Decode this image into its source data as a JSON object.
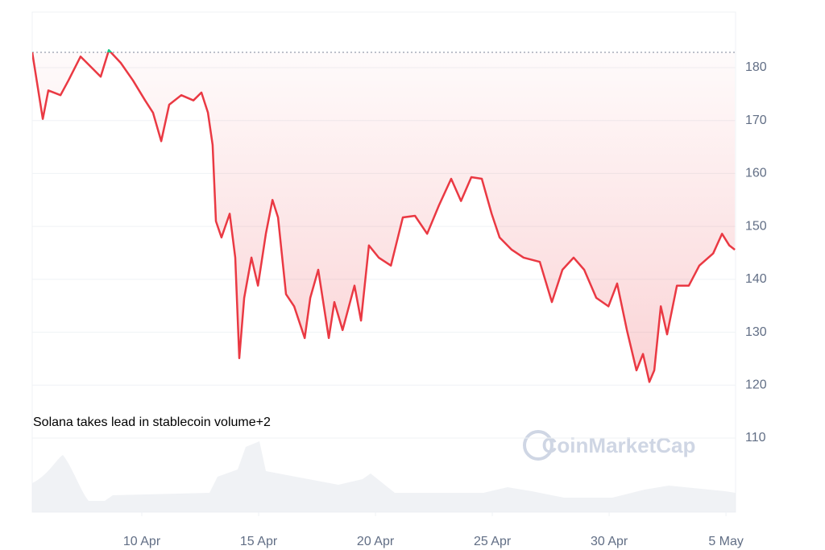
{
  "chart_data": {
    "type": "line",
    "annotation": "Solana takes lead in stablecoin volume+2",
    "watermark": "CoinMarketCap",
    "color": "#ea3943",
    "color_above": "#16c784",
    "baseline": 182.9,
    "x": [
      5.31,
      5.76,
      6.0,
      6.52,
      6.86,
      7.38,
      7.72,
      8.24,
      8.59,
      9.1,
      9.62,
      10.14,
      10.48,
      10.83,
      11.17,
      11.69,
      12.21,
      12.55,
      12.83,
      13.03,
      13.17,
      13.41,
      13.76,
      14.0,
      14.17,
      14.38,
      14.69,
      14.97,
      15.31,
      15.59,
      15.83,
      16.17,
      16.52,
      16.97,
      17.21,
      17.55,
      18.0,
      18.24,
      18.59,
      19.1,
      19.38,
      19.72,
      20.14,
      20.66,
      21.17,
      21.69,
      22.21,
      22.72,
      23.24,
      23.66,
      24.1,
      24.55,
      24.97,
      25.31,
      25.83,
      26.34,
      27.03,
      27.55,
      28.0,
      28.48,
      28.93,
      29.45,
      29.97,
      30.34,
      30.76,
      31.17,
      31.45,
      31.72,
      31.93,
      32.21,
      32.48,
      32.9,
      33.41,
      33.86,
      34.45,
      34.83,
      35.14,
      35.38
    ],
    "values": [
      182.9,
      170.3,
      175.7,
      174.8,
      177.6,
      182.1,
      180.6,
      178.3,
      183.3,
      180.9,
      177.6,
      173.8,
      171.5,
      166.1,
      173.0,
      174.8,
      173.8,
      175.3,
      171.5,
      165.4,
      151.0,
      147.9,
      152.4,
      144.1,
      125.1,
      136.5,
      144.1,
      138.8,
      148.6,
      155.0,
      151.7,
      137.2,
      134.9,
      128.9,
      136.5,
      141.8,
      128.9,
      135.7,
      130.4,
      138.8,
      132.2,
      146.4,
      144.1,
      142.6,
      151.7,
      152.0,
      148.6,
      154.0,
      159.0,
      154.8,
      159.3,
      159.0,
      152.4,
      147.9,
      145.6,
      144.1,
      143.3,
      135.7,
      141.8,
      144.1,
      141.8,
      136.5,
      134.9,
      139.2,
      130.4,
      122.8,
      125.9,
      120.6,
      122.8,
      134.9,
      129.6,
      138.8,
      138.8,
      142.6,
      144.9,
      148.6,
      146.4,
      145.6
    ],
    "xlim": [
      5.31,
      35.41
    ],
    "xticks": [
      {
        "value": 10,
        "label": "10 Apr"
      },
      {
        "value": 15,
        "label": "15 Apr"
      },
      {
        "value": 20,
        "label": "20 Apr"
      },
      {
        "value": 25,
        "label": "25 Apr"
      },
      {
        "value": 30,
        "label": "30 Apr"
      },
      {
        "value": 35,
        "label": "5 May"
      }
    ],
    "ylim": [
      96,
      190.5
    ],
    "yticks": [
      110,
      120,
      130,
      140,
      150,
      160,
      170,
      180
    ],
    "grid": true
  }
}
